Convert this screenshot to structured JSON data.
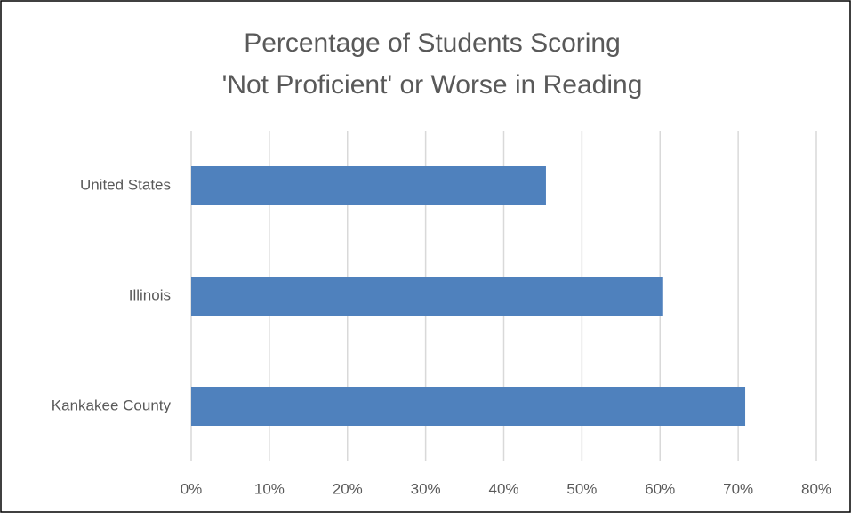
{
  "chart_data": {
    "type": "bar",
    "orientation": "horizontal",
    "title": [
      "Percentage of Students Scoring",
      "'Not Proficient' or Worse in Reading"
    ],
    "categories": [
      "United States",
      "Illinois",
      "Kankakee County"
    ],
    "values": [
      45.4,
      60.4,
      70.9
    ],
    "color": "#4f81bd",
    "xlim": [
      0,
      80
    ],
    "xticks": [
      {
        "value": 0,
        "label": "0%"
      },
      {
        "value": 10,
        "label": "10%"
      },
      {
        "value": 20,
        "label": "20%"
      },
      {
        "value": 30,
        "label": "30%"
      },
      {
        "value": 40,
        "label": "40%"
      },
      {
        "value": 50,
        "label": "50%"
      },
      {
        "value": 60,
        "label": "60%"
      },
      {
        "value": 70,
        "label": "70%"
      },
      {
        "value": 80,
        "label": "80%"
      }
    ],
    "grid": true
  }
}
